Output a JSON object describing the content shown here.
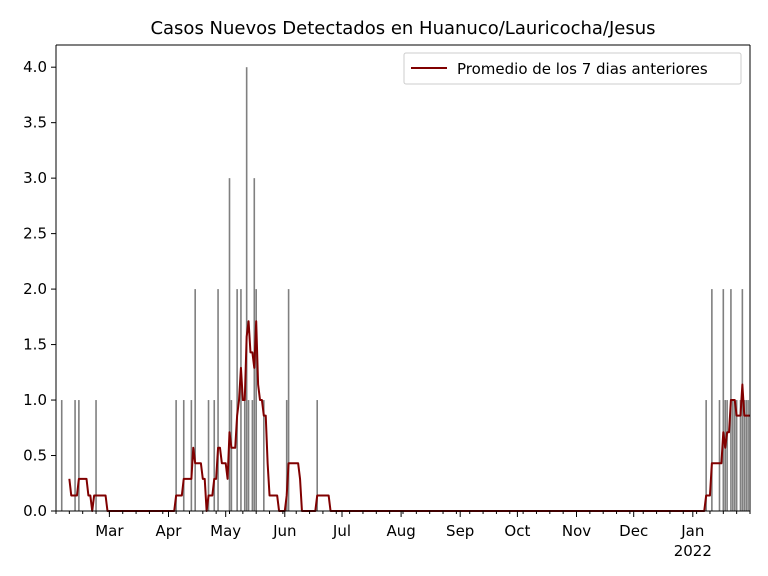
{
  "chart_data": {
    "type": "bar",
    "title": "Casos Nuevos Detectados en Huanuco/Lauricocha/Jesus",
    "xlabel": "",
    "ylabel": "",
    "x_range": [
      "2021-02-01",
      "2022-01-31"
    ],
    "ylim": [
      0,
      4.2
    ],
    "y_ticks": [
      0.0,
      0.5,
      1.0,
      1.5,
      2.0,
      2.5,
      3.0,
      3.5,
      4.0
    ],
    "y_tick_labels": [
      "0.0",
      "0.5",
      "1.0",
      "1.5",
      "2.0",
      "2.5",
      "3.0",
      "3.5",
      "4.0"
    ],
    "x_ticks": [
      {
        "date": "2021-03-01",
        "label": "Mar"
      },
      {
        "date": "2021-04-01",
        "label": "Apr"
      },
      {
        "date": "2021-05-01",
        "label": "May"
      },
      {
        "date": "2021-06-01",
        "label": "Jun"
      },
      {
        "date": "2021-07-01",
        "label": "Jul"
      },
      {
        "date": "2021-08-01",
        "label": "Aug"
      },
      {
        "date": "2021-09-01",
        "label": "Sep"
      },
      {
        "date": "2021-10-01",
        "label": "Oct"
      },
      {
        "date": "2021-11-01",
        "label": "Nov"
      },
      {
        "date": "2021-12-01",
        "label": "Dec"
      },
      {
        "date": "2022-01-01",
        "label": "Jan",
        "sublabel": "2022"
      }
    ],
    "legend": {
      "position": "top-right",
      "entries": [
        "Promedio de los 7 dias anteriores"
      ]
    },
    "grid": false,
    "colors": {
      "bars": "#808080",
      "line": "#800000"
    },
    "series": [
      {
        "type": "bar",
        "points": [
          [
            "2021-02-04",
            1
          ],
          [
            "2021-02-11",
            1
          ],
          [
            "2021-02-13",
            1
          ],
          [
            "2021-02-22",
            1
          ],
          [
            "2021-04-05",
            1
          ],
          [
            "2021-04-09",
            1
          ],
          [
            "2021-04-13",
            1
          ],
          [
            "2021-04-15",
            2
          ],
          [
            "2021-04-22",
            1
          ],
          [
            "2021-04-25",
            1
          ],
          [
            "2021-04-27",
            2
          ],
          [
            "2021-05-03",
            3
          ],
          [
            "2021-05-04",
            1
          ],
          [
            "2021-05-07",
            2
          ],
          [
            "2021-05-09",
            2
          ],
          [
            "2021-05-11",
            1
          ],
          [
            "2021-05-12",
            4
          ],
          [
            "2021-05-13",
            1
          ],
          [
            "2021-05-15",
            1
          ],
          [
            "2021-05-16",
            3
          ],
          [
            "2021-05-17",
            2
          ],
          [
            "2021-05-21",
            1
          ],
          [
            "2021-06-02",
            1
          ],
          [
            "2021-06-03",
            2
          ],
          [
            "2021-06-18",
            1
          ],
          [
            "2022-01-08",
            1
          ],
          [
            "2022-01-11",
            2
          ],
          [
            "2022-01-15",
            1
          ],
          [
            "2022-01-17",
            2
          ],
          [
            "2022-01-18",
            1
          ],
          [
            "2022-01-19",
            1
          ],
          [
            "2022-01-21",
            2
          ],
          [
            "2022-01-22",
            1
          ],
          [
            "2022-01-23",
            1
          ],
          [
            "2022-01-24",
            1
          ],
          [
            "2022-01-26",
            1
          ],
          [
            "2022-01-27",
            2
          ],
          [
            "2022-01-28",
            1
          ],
          [
            "2022-01-29",
            1
          ],
          [
            "2022-01-30",
            1
          ]
        ]
      },
      {
        "type": "line",
        "name": "Promedio de los 7 dias anteriores",
        "points": [
          [
            "2021-02-08",
            0.29
          ],
          [
            "2021-02-09",
            0.14
          ],
          [
            "2021-02-11",
            0.14
          ],
          [
            "2021-02-12",
            0.14
          ],
          [
            "2021-02-13",
            0.29
          ],
          [
            "2021-02-17",
            0.29
          ],
          [
            "2021-02-18",
            0.14
          ],
          [
            "2021-02-19",
            0.14
          ],
          [
            "2021-02-20",
            0.0
          ],
          [
            "2021-02-21",
            0.14
          ],
          [
            "2021-02-27",
            0.14
          ],
          [
            "2021-02-28",
            0.0
          ],
          [
            "2021-04-04",
            0.0
          ],
          [
            "2021-04-05",
            0.14
          ],
          [
            "2021-04-08",
            0.14
          ],
          [
            "2021-04-09",
            0.29
          ],
          [
            "2021-04-13",
            0.29
          ],
          [
            "2021-04-14",
            0.57
          ],
          [
            "2021-04-15",
            0.43
          ],
          [
            "2021-04-18",
            0.43
          ],
          [
            "2021-04-19",
            0.29
          ],
          [
            "2021-04-20",
            0.29
          ],
          [
            "2021-04-21",
            0.0
          ],
          [
            "2021-04-22",
            0.14
          ],
          [
            "2021-04-24",
            0.14
          ],
          [
            "2021-04-25",
            0.29
          ],
          [
            "2021-04-26",
            0.29
          ],
          [
            "2021-04-27",
            0.57
          ],
          [
            "2021-04-28",
            0.57
          ],
          [
            "2021-04-29",
            0.43
          ],
          [
            "2021-05-01",
            0.43
          ],
          [
            "2021-05-02",
            0.29
          ],
          [
            "2021-05-03",
            0.71
          ],
          [
            "2021-05-04",
            0.57
          ],
          [
            "2021-05-06",
            0.57
          ],
          [
            "2021-05-07",
            0.86
          ],
          [
            "2021-05-08",
            1.0
          ],
          [
            "2021-05-09",
            1.29
          ],
          [
            "2021-05-10",
            1.0
          ],
          [
            "2021-05-11",
            1.0
          ],
          [
            "2021-05-12",
            1.57
          ],
          [
            "2021-05-13",
            1.71
          ],
          [
            "2021-05-14",
            1.43
          ],
          [
            "2021-05-15",
            1.43
          ],
          [
            "2021-05-16",
            1.29
          ],
          [
            "2021-05-17",
            1.71
          ],
          [
            "2021-05-18",
            1.14
          ],
          [
            "2021-05-19",
            1.0
          ],
          [
            "2021-05-20",
            1.0
          ],
          [
            "2021-05-21",
            0.86
          ],
          [
            "2021-05-22",
            0.86
          ],
          [
            "2021-05-23",
            0.43
          ],
          [
            "2021-05-24",
            0.14
          ],
          [
            "2021-05-28",
            0.14
          ],
          [
            "2021-05-29",
            0.0
          ],
          [
            "2021-06-01",
            0.0
          ],
          [
            "2021-06-02",
            0.14
          ],
          [
            "2021-06-03",
            0.43
          ],
          [
            "2021-06-08",
            0.43
          ],
          [
            "2021-06-09",
            0.29
          ],
          [
            "2021-06-10",
            0.0
          ],
          [
            "2021-06-17",
            0.0
          ],
          [
            "2021-06-18",
            0.14
          ],
          [
            "2021-06-24",
            0.14
          ],
          [
            "2021-06-25",
            0.0
          ],
          [
            "2022-01-07",
            0.0
          ],
          [
            "2022-01-08",
            0.14
          ],
          [
            "2022-01-10",
            0.14
          ],
          [
            "2022-01-11",
            0.43
          ],
          [
            "2022-01-16",
            0.43
          ],
          [
            "2022-01-17",
            0.71
          ],
          [
            "2022-01-18",
            0.57
          ],
          [
            "2022-01-19",
            0.71
          ],
          [
            "2022-01-20",
            0.71
          ],
          [
            "2022-01-21",
            1.0
          ],
          [
            "2022-01-23",
            1.0
          ],
          [
            "2022-01-24",
            0.86
          ],
          [
            "2022-01-26",
            0.86
          ],
          [
            "2022-01-27",
            1.14
          ],
          [
            "2022-01-28",
            0.86
          ],
          [
            "2022-01-31",
            0.86
          ]
        ]
      }
    ]
  }
}
